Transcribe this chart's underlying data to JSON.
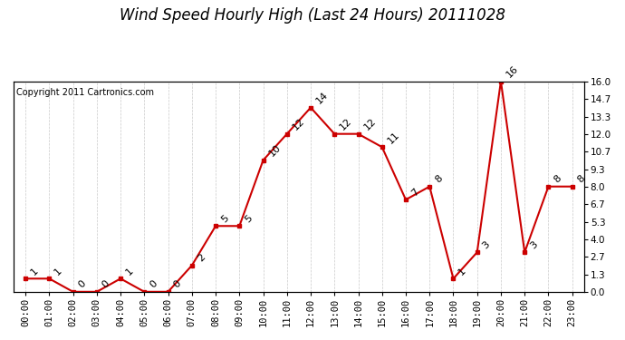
{
  "title": "Wind Speed Hourly High (Last 24 Hours) 20111028",
  "copyright": "Copyright 2011 Cartronics.com",
  "hours": [
    "00:00",
    "01:00",
    "02:00",
    "03:00",
    "04:00",
    "05:00",
    "06:00",
    "07:00",
    "08:00",
    "09:00",
    "10:00",
    "11:00",
    "12:00",
    "13:00",
    "14:00",
    "15:00",
    "16:00",
    "17:00",
    "18:00",
    "19:00",
    "20:00",
    "21:00",
    "22:00",
    "23:00"
  ],
  "y_values": [
    1,
    1,
    0,
    0,
    1,
    0,
    0,
    2,
    5,
    5,
    10,
    12,
    14,
    12,
    12,
    11,
    7,
    8,
    1,
    3,
    16,
    3,
    8,
    8
  ],
  "yticks": [
    0.0,
    1.3,
    2.7,
    4.0,
    5.3,
    6.7,
    8.0,
    9.3,
    10.7,
    12.0,
    13.3,
    14.7,
    16.0
  ],
  "ymin": 0.0,
  "ymax": 16.0,
  "line_color": "#cc0000",
  "background_color": "#ffffff",
  "grid_color": "#bbbbbb",
  "title_fontsize": 12,
  "copyright_fontsize": 7,
  "tick_fontsize": 7.5,
  "annotation_fontsize": 8
}
